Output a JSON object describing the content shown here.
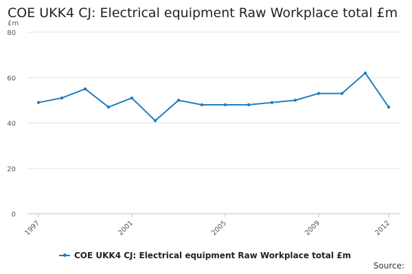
{
  "chart_data": {
    "type": "line",
    "title": "COE UKK4 CJ: Electrical equipment Raw Workplace total £m",
    "ylabel": "£m",
    "xlabel": "",
    "ylim": [
      0,
      80
    ],
    "yticks": [
      0,
      20,
      40,
      60,
      80
    ],
    "x": [
      1997,
      1998,
      1999,
      2000,
      2001,
      2002,
      2003,
      2004,
      2005,
      2006,
      2007,
      2008,
      2009,
      2010,
      2011,
      2012
    ],
    "xticks": [
      1997,
      2001,
      2005,
      2009,
      2012
    ],
    "series": [
      {
        "name": "COE UKK4 CJ: Electrical equipment Raw Workplace total £m",
        "color": "#1f7bbf",
        "values": [
          49,
          51,
          55,
          47,
          51,
          41,
          50,
          48,
          48,
          48,
          49,
          50,
          53,
          53,
          62,
          47
        ]
      }
    ],
    "grid": true,
    "legend_position": "bottom"
  },
  "footer": {
    "source_label": "Source:"
  }
}
